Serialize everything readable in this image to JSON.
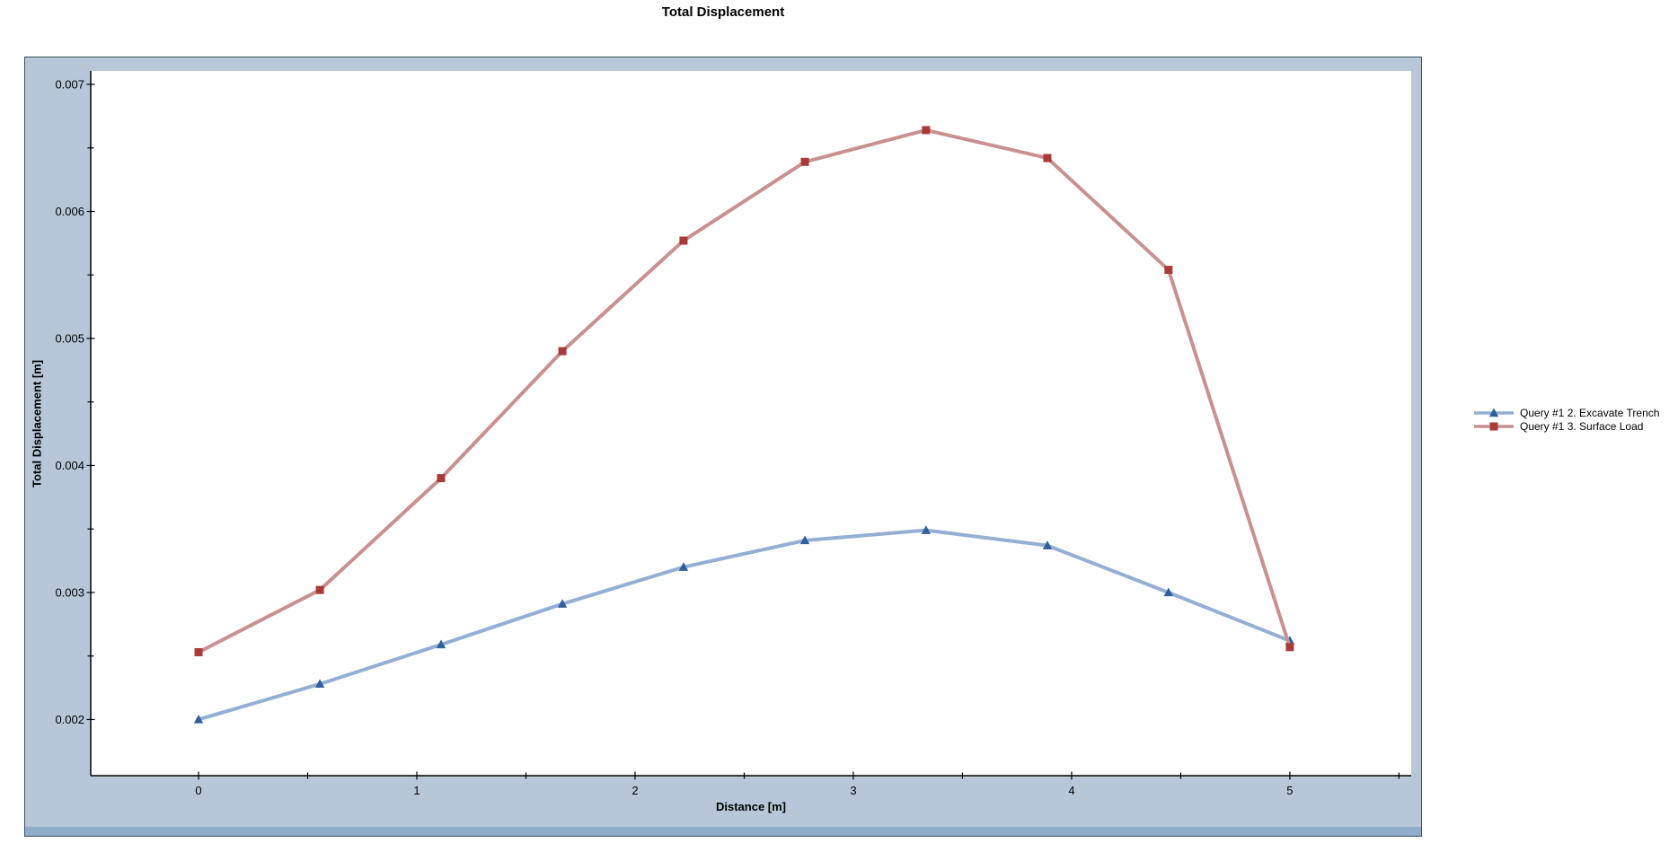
{
  "chart_data": {
    "type": "line",
    "title": "Total Displacement",
    "xlabel": "Distance [m]",
    "ylabel": "Total Displacement [m]",
    "x": [
      0,
      0.556,
      1.111,
      1.667,
      2.222,
      2.778,
      3.333,
      3.889,
      4.444,
      5.0
    ],
    "series": [
      {
        "name": "Query #1 2. Excavate Trench",
        "marker": "triangle",
        "line_color": "#94afd3",
        "marker_color": "#315f9b",
        "values": [
          0.002,
          0.00228,
          0.00259,
          0.00291,
          0.0032,
          0.00341,
          0.00349,
          0.00337,
          0.003,
          0.00262
        ]
      },
      {
        "name": "Query #1 3. Surface Load",
        "marker": "square",
        "line_color": "#c99090",
        "marker_color": "#a93a38",
        "values": [
          0.00253,
          0.00302,
          0.0039,
          0.0049,
          0.00577,
          0.00639,
          0.00664,
          0.00642,
          0.00554,
          0.00257
        ]
      }
    ],
    "xlim": [
      -0.494,
      5.556
    ],
    "ylim": [
      0.001558,
      0.007106
    ],
    "x_ticks": [
      0,
      1,
      2,
      3,
      4,
      5
    ],
    "x_tick_labels": [
      "0",
      "1",
      "2",
      "3",
      "4",
      "5"
    ],
    "x_minor_ticks": [
      0.5,
      1.5,
      2.5,
      3.5,
      4.5,
      5.5
    ],
    "y_ticks": [
      0.002,
      0.003,
      0.004,
      0.005,
      0.006,
      0.007
    ],
    "y_tick_labels": [
      "0.002",
      "0.003",
      "0.004",
      "0.005",
      "0.006",
      "0.007"
    ],
    "y_minor_ticks": [
      0.0025,
      0.0035,
      0.0045,
      0.0055,
      0.0065
    ],
    "grid": false,
    "legend_position": "right-outside",
    "colors": {
      "panel_background": "#b7c7d9",
      "plot_background": "#ffffff",
      "axis": "#000000",
      "panel_bottom_strip": "#8fadcb"
    }
  }
}
